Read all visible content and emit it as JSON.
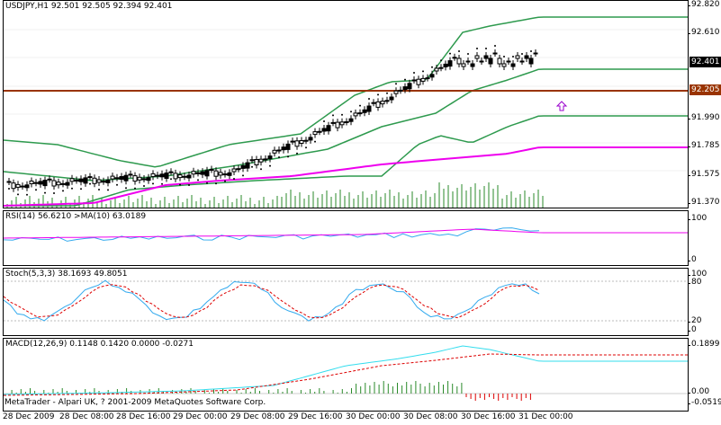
{
  "main": {
    "header": {
      "symbol": "USDJPY,H1",
      "ohlc": "92.501 92.505 92.394 92.401"
    },
    "y_ticks": [
      "92.820",
      "92.610",
      "91.990",
      "91.785",
      "91.575",
      "91.370"
    ],
    "bid_tag": "92.401",
    "hline_tag": "92.205",
    "colors": {
      "candle": "#000000",
      "bollinger": "#2e9a4e",
      "ma": "#ee00ee",
      "hline": "#993300",
      "volume": "#2a8a2a",
      "arrow": "#9900cc"
    }
  },
  "rsi": {
    "label": "RSI(14) 56.6210  >MA(10) 63.0189",
    "y_ticks": [
      "100",
      "0"
    ],
    "colors": {
      "rsi": "#33aaee",
      "ma": "#ee00ee"
    }
  },
  "stoch": {
    "label": "Stoch(5,3,3) 38.1693 49.8051",
    "y_ticks": [
      "100",
      "80",
      "20",
      "0"
    ],
    "colors": {
      "main": "#33aaee",
      "signal": "#dd0000"
    }
  },
  "macd": {
    "label": "MACD(12,26,9) 0.1148 0.1420 0.0000 -0.0271",
    "y_ticks": [
      "0.1899",
      "0.00",
      "-0.0519"
    ],
    "colors": {
      "macd": "#33ddee",
      "signal": "#dd0000",
      "hist_pos": "#2a8a2a",
      "hist_neg": "#dd0000"
    }
  },
  "credit": "MetaTrader - Alpari UK, ? 2001-2009 MetaQuotes Software Corp.",
  "x_ticks": [
    "28 Dec 2009",
    "28 Dec 08:00",
    "28 Dec 16:00",
    "29 Dec 00:00",
    "29 Dec 08:00",
    "29 Dec 16:00",
    "30 Dec 00:00",
    "30 Dec 08:00",
    "30 Dec 16:00",
    "31 Dec 00:00"
  ]
}
